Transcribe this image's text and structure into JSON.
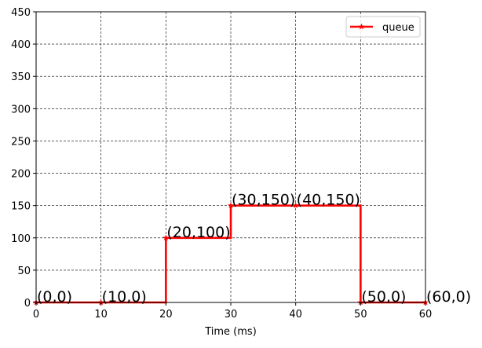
{
  "chart_data": {
    "type": "line",
    "drawstyle": "steps-post",
    "title": "",
    "xlabel": "Time (ms)",
    "ylabel": "",
    "xlim": [
      0,
      60
    ],
    "ylim": [
      0,
      450
    ],
    "x_ticks": [
      0,
      10,
      20,
      30,
      40,
      50,
      60
    ],
    "y_ticks": [
      0,
      50,
      100,
      150,
      200,
      250,
      300,
      350,
      400,
      450
    ],
    "grid": true,
    "grid_style": "dashed",
    "legend_position": "top-right",
    "series": [
      {
        "name": "queue",
        "color": "#ff0000",
        "marker": "star",
        "x": [
          0,
          10,
          20,
          30,
          40,
          50,
          60
        ],
        "y": [
          0,
          0,
          100,
          150,
          150,
          0,
          0
        ]
      }
    ],
    "annotations": [
      "(0,0)",
      "(10,0)",
      "(20,100)",
      "(30,150)",
      "(40,150)",
      "(50,0)",
      "(60,0)"
    ]
  }
}
